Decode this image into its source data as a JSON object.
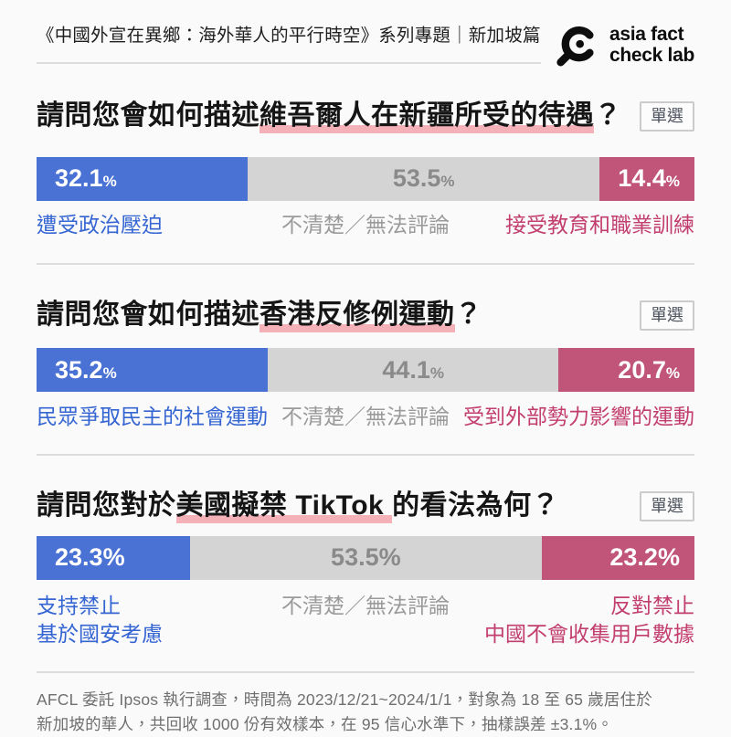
{
  "header": {
    "series_title": "《中國外宣在異鄉：海外華人的平行時空》系列專題｜新加坡篇",
    "logo_line1": "asia fact",
    "logo_line2": "check lab"
  },
  "colors": {
    "background": "#fafafa",
    "blue": "#4a72d4",
    "gray": "#d4d4d4",
    "pink": "#c05479",
    "blue_text": "#3465d2",
    "gray_text": "#9a9a9a",
    "gray_bar_text": "#8a8a8a",
    "pink_text": "#c23e6e",
    "highlight": "#f4b1b7",
    "divider": "#dcdcdc"
  },
  "questions": [
    {
      "title_prefix": "請問您會如何描述",
      "title_highlight": "維吾爾人在新疆所受的待遇",
      "title_suffix": "？",
      "badge": "單選",
      "small_percent_sign": true,
      "segments": [
        {
          "value": 32.1,
          "value_display": "32.1",
          "sign": "%",
          "label": "遭受政治壓迫",
          "color_key": "blue"
        },
        {
          "value": 53.5,
          "value_display": "53.5",
          "sign": "%",
          "label": "不清楚／無法評論",
          "color_key": "gray"
        },
        {
          "value": 14.4,
          "value_display": "14.4",
          "sign": "%",
          "label": "接受教育和職業訓練",
          "color_key": "pink"
        }
      ]
    },
    {
      "title_prefix": "請問您會如何描述",
      "title_highlight": "香港反修例運動",
      "title_suffix": "？",
      "badge": "單選",
      "small_percent_sign": true,
      "segments": [
        {
          "value": 35.2,
          "value_display": "35.2",
          "sign": "%",
          "label": "民眾爭取民主的社會運動",
          "color_key": "blue"
        },
        {
          "value": 44.1,
          "value_display": "44.1",
          "sign": "%",
          "label": "不清楚／無法評論",
          "color_key": "gray"
        },
        {
          "value": 20.7,
          "value_display": "20.7",
          "sign": "%",
          "label": "受到外部勢力影響的運動",
          "color_key": "pink"
        }
      ]
    },
    {
      "title_prefix": "請問您對於",
      "title_highlight": "美國擬禁 TikTok ",
      "title_suffix": "的看法為何？",
      "badge": "單選",
      "small_percent_sign": false,
      "segments": [
        {
          "value": 23.3,
          "value_display": "23.3",
          "sign": "%",
          "label": "支持禁止\n基於國安考慮",
          "color_key": "blue"
        },
        {
          "value": 53.5,
          "value_display": "53.5",
          "sign": "%",
          "label": "不清楚／無法評論",
          "color_key": "gray"
        },
        {
          "value": 23.2,
          "value_display": "23.2",
          "sign": "%",
          "label": "反對禁止\n中國不會收集用戶數據",
          "color_key": "pink"
        }
      ]
    }
  ],
  "footer": {
    "line1": "AFCL 委託 Ipsos 執行調查，時間為 2023/12/21~2024/1/1，對象為 18 至 65 歲居住於",
    "line2": "新加坡的華人，共回收 1000 份有效樣本，在 95 信心水準下，抽樣誤差 ±3.1%。"
  },
  "chart_data": [
    {
      "type": "bar",
      "stacked": true,
      "orientation": "horizontal",
      "title": "請問您會如何描述維吾爾人在新疆所受的待遇？",
      "unit": "%",
      "categories": [
        "遭受政治壓迫",
        "不清楚／無法評論",
        "接受教育和職業訓練"
      ],
      "values": [
        32.1,
        53.5,
        14.4
      ],
      "colors": [
        "#4a72d4",
        "#d4d4d4",
        "#c05479"
      ],
      "xlim": [
        0,
        100
      ],
      "annotation": "單選"
    },
    {
      "type": "bar",
      "stacked": true,
      "orientation": "horizontal",
      "title": "請問您會如何描述香港反修例運動？",
      "unit": "%",
      "categories": [
        "民眾爭取民主的社會運動",
        "不清楚／無法評論",
        "受到外部勢力影響的運動"
      ],
      "values": [
        35.2,
        44.1,
        20.7
      ],
      "colors": [
        "#4a72d4",
        "#d4d4d4",
        "#c05479"
      ],
      "xlim": [
        0,
        100
      ],
      "annotation": "單選"
    },
    {
      "type": "bar",
      "stacked": true,
      "orientation": "horizontal",
      "title": "請問您對於美國擬禁 TikTok 的看法為何？",
      "unit": "%",
      "categories": [
        "支持禁止 基於國安考慮",
        "不清楚／無法評論",
        "反對禁止 中國不會收集用戶數據"
      ],
      "values": [
        23.3,
        53.5,
        23.2
      ],
      "colors": [
        "#4a72d4",
        "#d4d4d4",
        "#c05479"
      ],
      "xlim": [
        0,
        100
      ],
      "annotation": "單選"
    }
  ]
}
